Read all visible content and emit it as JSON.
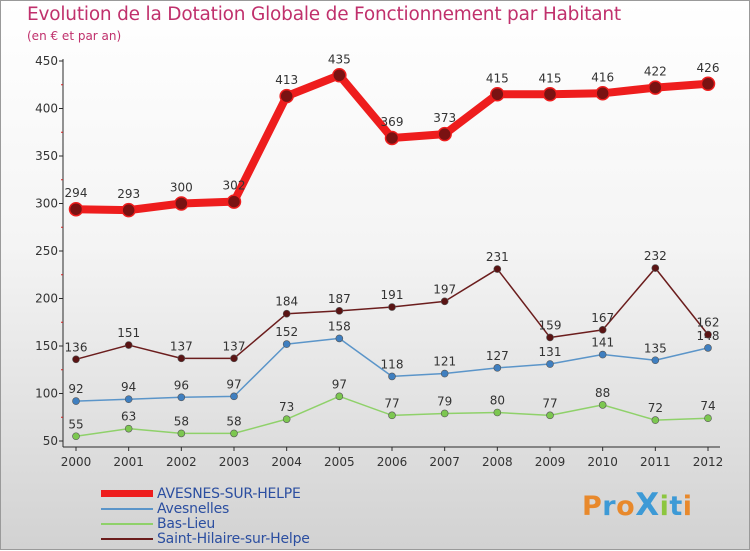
{
  "title": "Evolution de la Dotation Globale de Fonctionnement par Habitant",
  "subtitle": "(en € et par an)",
  "logo": {
    "text": "ProXiti",
    "colors": [
      "#e8892c",
      "#3d9ad6",
      "#e8892c",
      "#3d9ad6",
      "#8cc63f",
      "#3d9ad6",
      "#e8892c"
    ]
  },
  "chart_data": {
    "type": "line",
    "categories": [
      "2000",
      "2001",
      "2002",
      "2003",
      "2004",
      "2005",
      "2006",
      "2007",
      "2008",
      "2009",
      "2010",
      "2011",
      "2012"
    ],
    "ylim": [
      50,
      450
    ],
    "yticks": [
      50,
      100,
      150,
      200,
      250,
      300,
      350,
      400,
      450
    ],
    "grid": false,
    "legend_position": "bottom-left",
    "series": [
      {
        "name": "AVESNES-SUR-HELPE",
        "color": "#e8161a",
        "line_color": "#ee1d1d",
        "marker_color": "#7a1212",
        "weight": "heavy",
        "values": [
          294,
          293,
          300,
          302,
          413,
          435,
          369,
          373,
          415,
          415,
          416,
          422,
          426
        ]
      },
      {
        "name": "Avesnelles",
        "color": "#5b95c9",
        "line_color": "#5b95c9",
        "marker_color": "#3f7fc0",
        "weight": "light",
        "values": [
          92,
          94,
          96,
          97,
          152,
          158,
          118,
          121,
          127,
          131,
          141,
          135,
          148
        ]
      },
      {
        "name": "Bas-Lieu",
        "color": "#8fd16a",
        "line_color": "#8fd16a",
        "marker_color": "#7cc750",
        "weight": "light",
        "values": [
          55,
          63,
          58,
          58,
          73,
          97,
          77,
          79,
          80,
          77,
          88,
          72,
          74
        ]
      },
      {
        "name": "Saint-Hilaire-sur-Helpe",
        "color": "#6b1d1d",
        "line_color": "#6b1d1d",
        "marker_color": "#5a1414",
        "weight": "light",
        "values": [
          136,
          151,
          137,
          137,
          184,
          187,
          191,
          197,
          231,
          159,
          167,
          232,
          162
        ]
      }
    ]
  }
}
